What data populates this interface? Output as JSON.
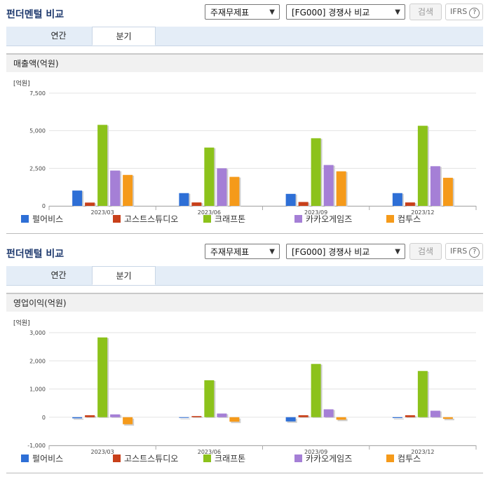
{
  "panels": [
    {
      "title": "펀더멘털 비교",
      "select_statement": "주재무제표",
      "select_compare": "[FG000] 경쟁사 비교",
      "search_label": "검색",
      "ifrs_label": "IFRS",
      "tabs": [
        {
          "label": "연간"
        },
        {
          "label": "분기"
        }
      ],
      "chart_title": "매출액(억원)",
      "unit": "[억원]"
    },
    {
      "title": "펀더멘털 비교",
      "select_statement": "주재무제표",
      "select_compare": "[FG000] 경쟁사 비교",
      "search_label": "검색",
      "ifrs_label": "IFRS",
      "tabs": [
        {
          "label": "연간"
        },
        {
          "label": "분기"
        }
      ],
      "chart_title": "영업이익(억원)",
      "unit": "[억원]"
    }
  ],
  "colors": {
    "펄어비스": "#2e6fd6",
    "고스트스튜디오": "#c8401a",
    "크래프톤": "#8cc21b",
    "카카오게임즈": "#a57fd6",
    "컴투스": "#f59a1a"
  },
  "chart_data": [
    {
      "type": "bar",
      "title": "매출액(억원)",
      "categories": [
        "2023/03",
        "2023/06",
        "2023/09",
        "2023/12"
      ],
      "ylim": [
        0,
        7500
      ],
      "yticks": [
        "7,500",
        "5,000",
        "2,500",
        "0"
      ],
      "ytick_values": [
        7500,
        5000,
        2500,
        0
      ],
      "legend": "bottom",
      "series": [
        {
          "name": "펄어비스",
          "values": [
            1020,
            850,
            800,
            850
          ]
        },
        {
          "name": "고스트스튜디오",
          "values": [
            220,
            230,
            260,
            230
          ]
        },
        {
          "name": "크래프톤",
          "values": [
            5390,
            3880,
            4500,
            5330
          ]
        },
        {
          "name": "카카오게임즈",
          "values": [
            2350,
            2500,
            2720,
            2640
          ]
        },
        {
          "name": "컴투스",
          "values": [
            2060,
            1930,
            2300,
            1870
          ]
        }
      ]
    },
    {
      "type": "bar",
      "title": "영업이익(억원)",
      "categories": [
        "2023/03",
        "2023/06",
        "2023/09",
        "2023/12"
      ],
      "ylim": [
        -1000,
        3000
      ],
      "yticks": [
        "3,000",
        "2,000",
        "1,000",
        "0",
        "-1,000"
      ],
      "ytick_values": [
        3000,
        2000,
        1000,
        0,
        -1000
      ],
      "legend": "bottom",
      "series": [
        {
          "name": "펄어비스",
          "values": [
            -40,
            -10,
            -150,
            -30
          ]
        },
        {
          "name": "고스트스튜디오",
          "values": [
            70,
            40,
            70,
            70
          ]
        },
        {
          "name": "크래프톤",
          "values": [
            2830,
            1310,
            1890,
            1640
          ]
        },
        {
          "name": "카카오게임즈",
          "values": [
            100,
            130,
            280,
            230
          ]
        },
        {
          "name": "컴투스",
          "values": [
            -250,
            -160,
            -90,
            -60
          ]
        }
      ]
    }
  ]
}
